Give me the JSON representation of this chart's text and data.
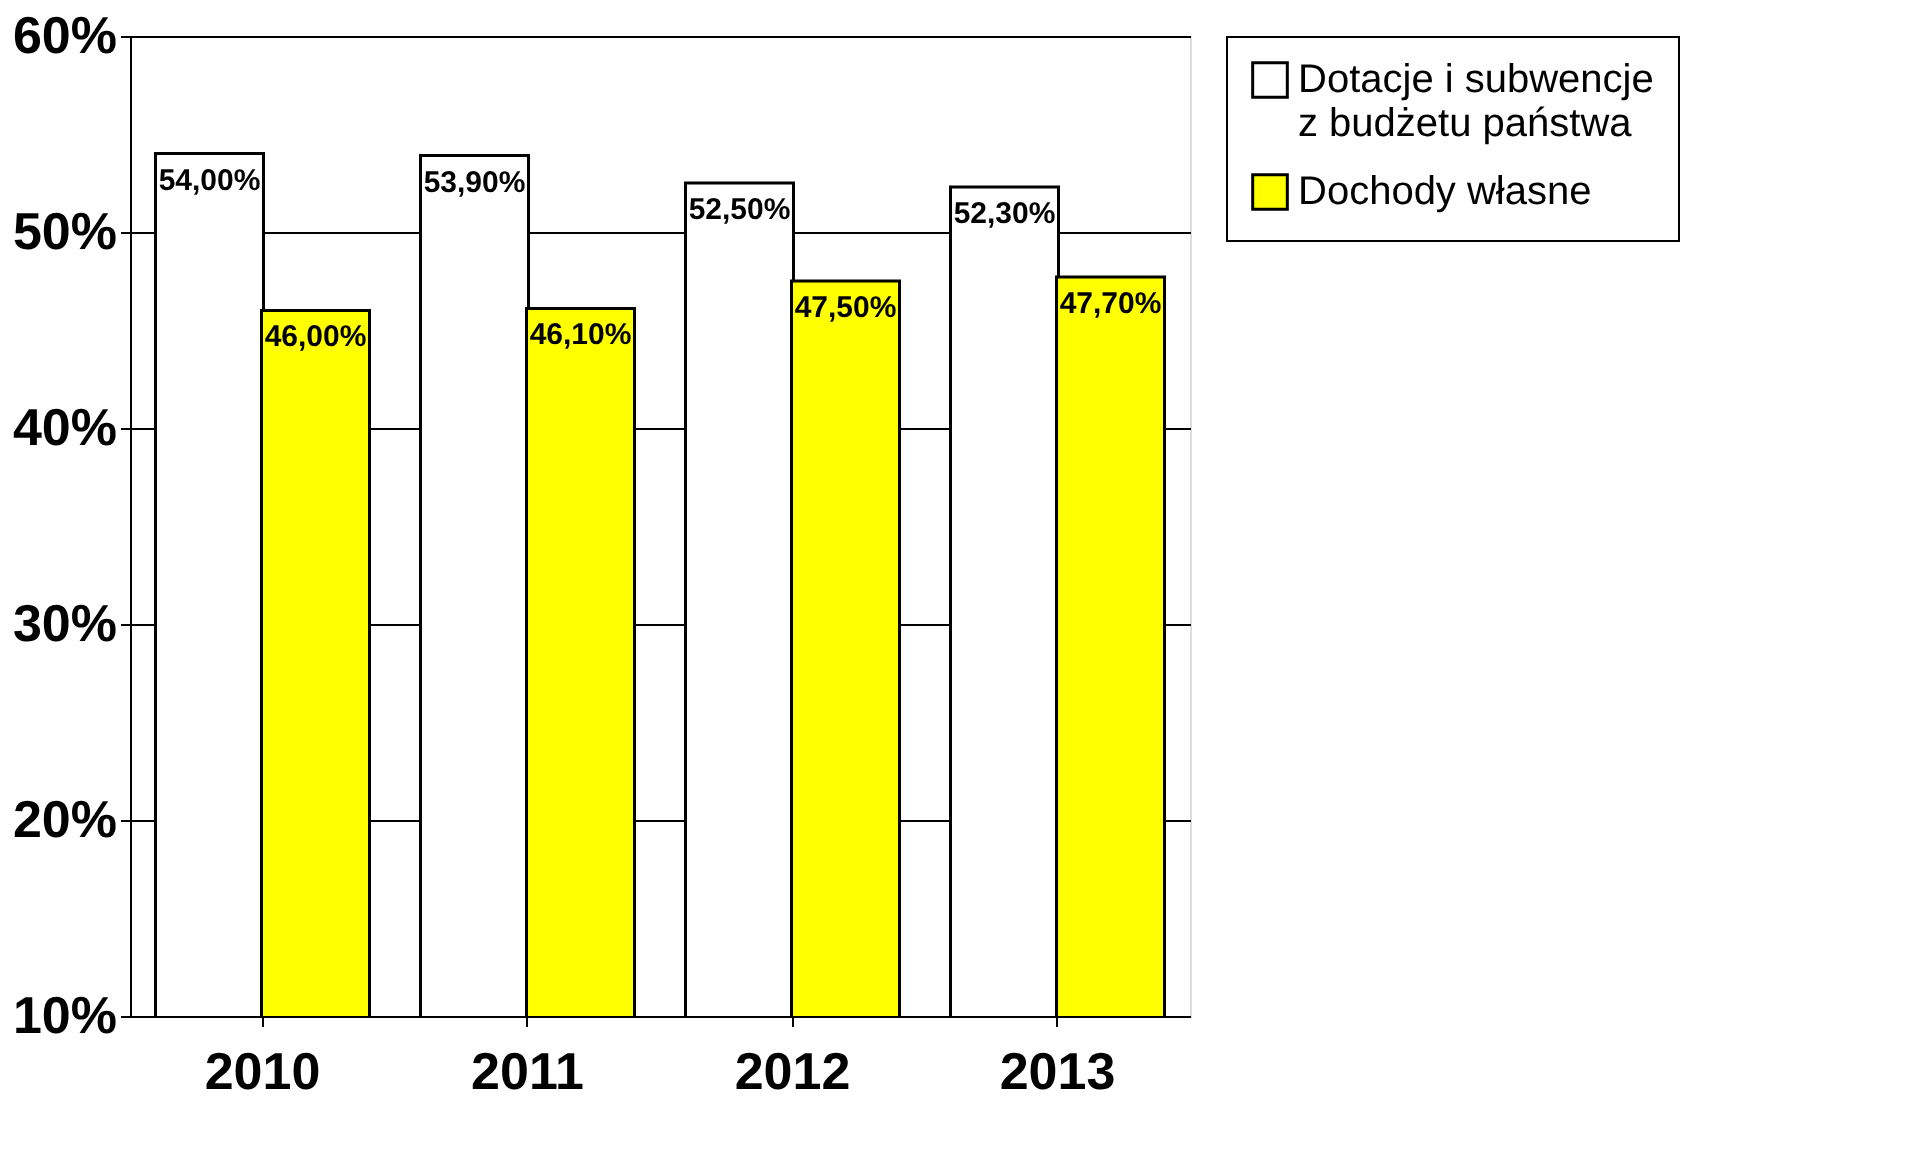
{
  "chart_data": {
    "type": "bar",
    "categories": [
      "2010",
      "2011",
      "2012",
      "2013"
    ],
    "series": [
      {
        "name": "Dotacje i subwencje z budżetu państwa",
        "color": "#ffffff",
        "values": [
          54.0,
          53.9,
          52.5,
          52.3
        ],
        "value_labels": [
          "54,00%",
          "53,90%",
          "52,50%",
          "52,30%"
        ]
      },
      {
        "name": "Dochody własne",
        "color": "#ffff00",
        "values": [
          46.0,
          46.1,
          47.5,
          47.7
        ],
        "value_labels": [
          "46,00%",
          "46,10%",
          "47,50%",
          "47,70%"
        ]
      }
    ],
    "ylim": [
      10,
      60
    ],
    "yticks": [
      {
        "value": 10,
        "label": "10%"
      },
      {
        "value": 20,
        "label": "20%"
      },
      {
        "value": 30,
        "label": "30%"
      },
      {
        "value": 40,
        "label": "40%"
      },
      {
        "value": 50,
        "label": "50%"
      },
      {
        "value": 60,
        "label": "60%"
      }
    ],
    "grid": "y",
    "legend": "right"
  }
}
